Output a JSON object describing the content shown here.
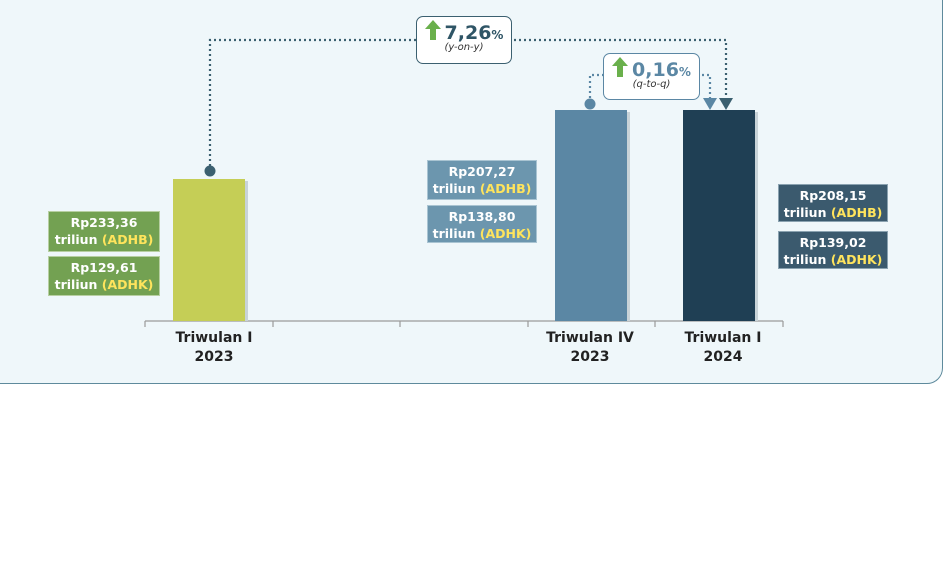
{
  "colors": {
    "bar_2023_q1": "#c5ce56",
    "bar_2023_q4": "#5b87a4",
    "bar_2024_q1": "#1f3f54",
    "connector": "#3b6070",
    "growth_up": "#6ab04c"
  },
  "chart_data": {
    "type": "bar",
    "categories": [
      "Triwulan I 2023",
      "Triwulan IV 2023",
      "Triwulan I 2024"
    ],
    "series": [
      {
        "name": "ADHB (Rp triliun)",
        "values": [
          233.36,
          207.27,
          208.15
        ]
      },
      {
        "name": "ADHK (Rp triliun)",
        "values": [
          129.61,
          138.8,
          139.02
        ]
      }
    ],
    "bar_values_adhb": [
      233.36,
      207.27,
      208.15
    ],
    "ylim": [
      0,
      260
    ],
    "title": "",
    "xlabel": "",
    "ylabel": ""
  },
  "categories_display": [
    {
      "line1": "Triwulan I",
      "line2": "2023"
    },
    {
      "line1": "Triwulan IV",
      "line2": "2023"
    },
    {
      "line1": "Triwulan I",
      "line2": "2024"
    }
  ],
  "labels": {
    "q1_2023": {
      "adhb_value": "Rp233,36",
      "adhb_unit": "triliun",
      "adhb_tag": "(ADHB)",
      "adhk_value": "Rp129,61",
      "adhk_unit": "triliun",
      "adhk_tag": "(ADHK)"
    },
    "q4_2023": {
      "adhb_value": "Rp207,27",
      "adhb_unit": "triliun",
      "adhb_tag": "(ADHB)",
      "adhk_value": "Rp138,80",
      "adhk_unit": "triliun",
      "adhk_tag": "(ADHK)"
    },
    "q1_2024": {
      "adhb_value": "Rp208,15",
      "adhb_unit": "triliun",
      "adhb_tag": "(ADHB)",
      "adhk_value": "Rp139,02",
      "adhk_unit": "triliun",
      "adhk_tag": "(ADHK)"
    }
  },
  "growth": {
    "yoy": {
      "value": "7,26",
      "pct": "%",
      "period": "(y-on-y)"
    },
    "qtq": {
      "value": "0,16",
      "pct": "%",
      "period": "(q-to-q)"
    }
  }
}
